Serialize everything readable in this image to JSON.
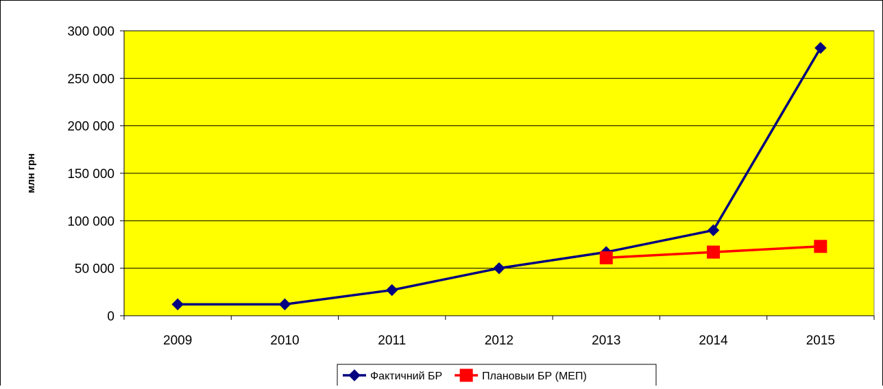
{
  "chart_data": {
    "type": "line",
    "title": "",
    "xlabel": "",
    "ylabel": "млн грн",
    "ylim": [
      0,
      300000
    ],
    "yticks": [
      0,
      50000,
      100000,
      150000,
      200000,
      250000,
      300000
    ],
    "ytick_labels": [
      "0",
      "50 000",
      "100 000",
      "150 000",
      "200 000",
      "250 000",
      "300 000"
    ],
    "categories": [
      "2009",
      "2010",
      "2011",
      "2012",
      "2013",
      "2014",
      "2015"
    ],
    "grid": true,
    "legend": "bottom-center",
    "plot_background": "#ffff00",
    "series": [
      {
        "name": "Фактичний БР",
        "color": "#000080",
        "marker": "diamond",
        "values": [
          12000,
          12000,
          27000,
          50000,
          67000,
          90000,
          282000
        ]
      },
      {
        "name": "Плановыи БР (МЕП)",
        "color": "#ff0000",
        "marker": "square",
        "values": [
          null,
          null,
          null,
          null,
          61000,
          67000,
          73000
        ]
      }
    ]
  }
}
